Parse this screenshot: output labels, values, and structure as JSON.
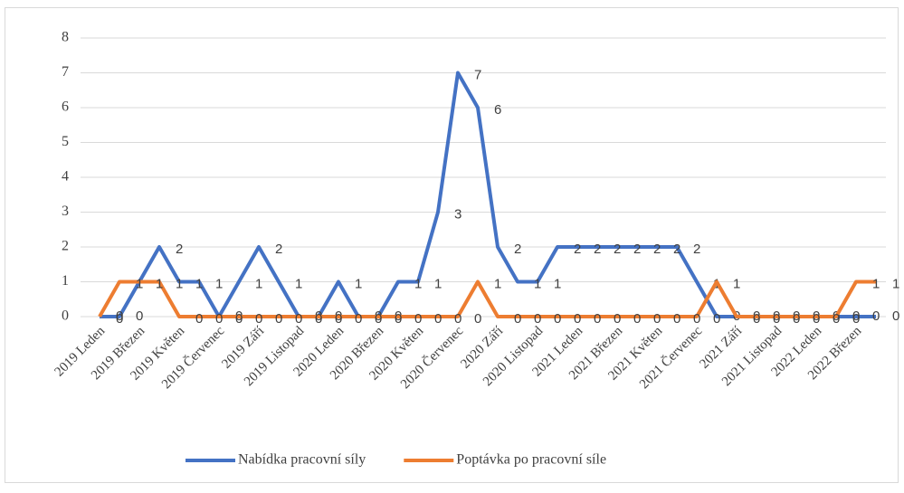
{
  "chart_data": {
    "type": "line",
    "categories": [
      "2019 Leden",
      null,
      "2019 Březen",
      null,
      "2019 Květen",
      null,
      "2019 Červenec",
      null,
      "2019 Září",
      null,
      "2019 Listopad",
      null,
      "2020 Leden",
      null,
      "2020 Březen",
      null,
      "2020 Květen",
      null,
      "2020 Červenec",
      null,
      "2020 Září",
      null,
      "2020 Listopad",
      null,
      "2021 Leden",
      null,
      "2021 Březen",
      null,
      "2021 Květen",
      null,
      "2021 Červenec",
      null,
      "2021 Září",
      null,
      "2021 Listopad",
      null,
      "2022 Leden",
      null,
      "2022 Březen",
      null
    ],
    "series": [
      {
        "name": "Nabídka pracovní síly",
        "color": "#4472c4",
        "values": [
          0,
          0,
          1,
          2,
          1,
          1,
          0,
          1,
          2,
          1,
          0,
          0,
          1,
          0,
          0,
          1,
          1,
          3,
          7,
          6,
          2,
          1,
          1,
          2,
          2,
          2,
          2,
          2,
          2,
          2,
          1,
          0,
          0,
          0,
          0,
          0,
          0,
          0,
          0,
          0
        ]
      },
      {
        "name": "Poptávka po pracovní síle",
        "color": "#ed7d31",
        "values": [
          0,
          1,
          1,
          1,
          0,
          0,
          0,
          0,
          0,
          0,
          0,
          0,
          0,
          0,
          0,
          0,
          0,
          0,
          0,
          1,
          0,
          0,
          0,
          0,
          0,
          0,
          0,
          0,
          0,
          0,
          0,
          1,
          0,
          0,
          0,
          0,
          0,
          0,
          1,
          1
        ]
      }
    ],
    "ylim": [
      0,
      8
    ],
    "yticks": [
      0,
      1,
      2,
      3,
      4,
      5,
      6,
      7,
      8
    ],
    "grid": true,
    "legend": "bottom"
  }
}
